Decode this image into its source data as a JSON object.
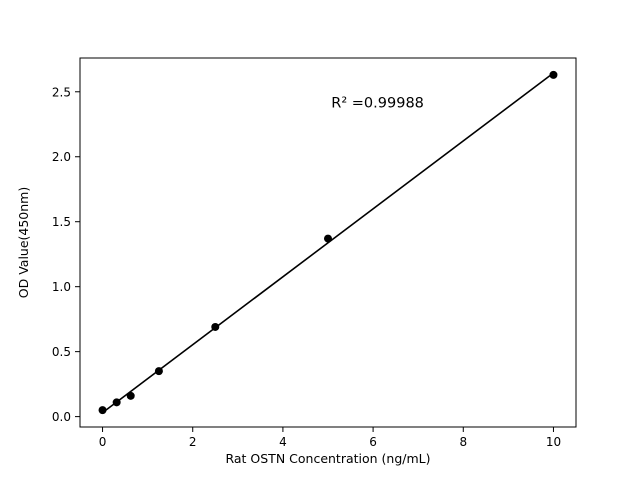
{
  "chart_data": {
    "type": "scatter",
    "title": "",
    "xlabel": "Rat OSTN Concentration (ng/mL)",
    "ylabel": "OD Value(450nm)",
    "x": [
      0,
      0.313,
      0.625,
      1.25,
      2.5,
      5,
      10
    ],
    "y": [
      0.05,
      0.11,
      0.16,
      0.35,
      0.69,
      1.37,
      2.63
    ],
    "fit_line": {
      "x_start": 0,
      "x_end": 10
    },
    "annotation": {
      "text": "R² =0.99988",
      "x": 6.1,
      "y": 2.38
    },
    "xlim": [
      -0.5,
      10.5
    ],
    "ylim": [
      -0.08,
      2.76
    ],
    "xticks": [
      0,
      2,
      4,
      6,
      8,
      10
    ],
    "xtick_labels": [
      "0",
      "2",
      "4",
      "6",
      "8",
      "10"
    ],
    "yticks": [
      0.0,
      0.5,
      1.0,
      1.5,
      2.0,
      2.5
    ],
    "ytick_labels": [
      "0.0",
      "0.5",
      "1.0",
      "1.5",
      "2.0",
      "2.5"
    ],
    "marker_color": "#000000",
    "line_color": "#000000",
    "frame_color": "#000000",
    "grid": "off",
    "legend": "none"
  }
}
